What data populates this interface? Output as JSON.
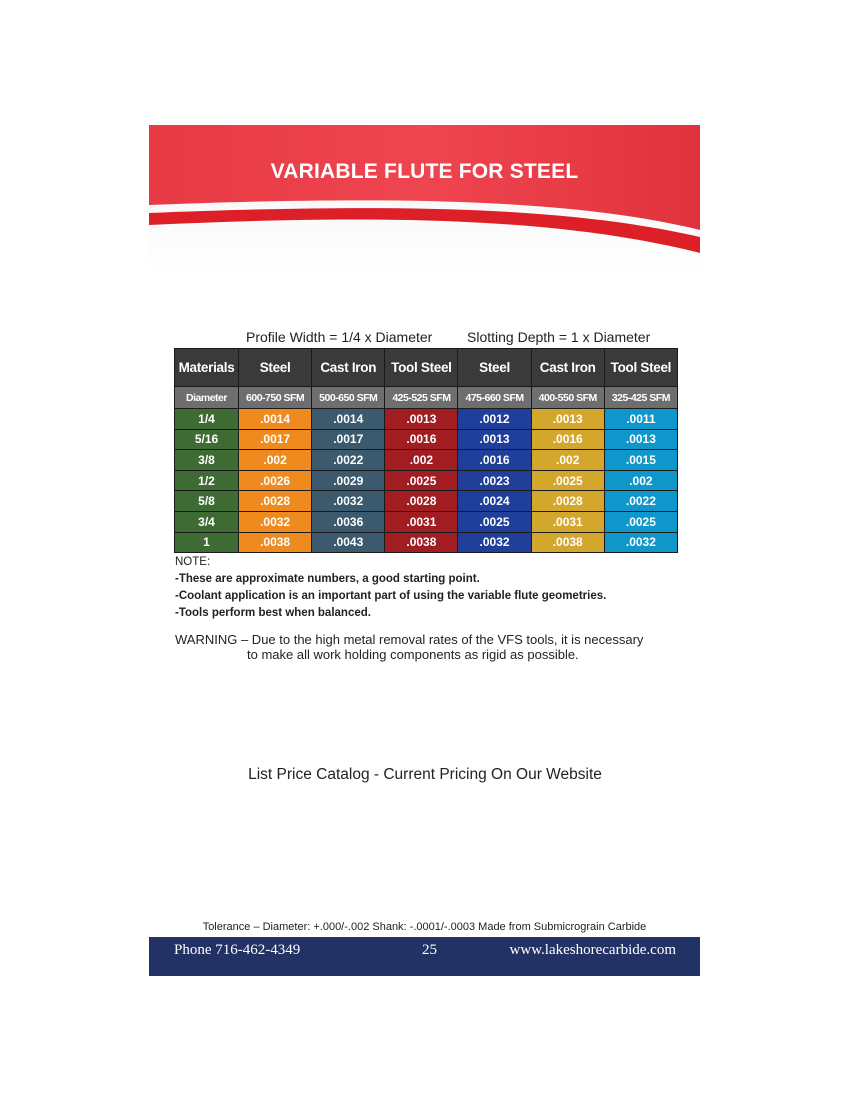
{
  "banner": {
    "title": "VARIABLE FLUTE FOR STEEL"
  },
  "captions": {
    "profile": "Profile Width = 1/4 x Diameter",
    "slotting": "Slotting Depth = 1 x Diameter"
  },
  "table": {
    "headers": [
      "Materials",
      "Steel",
      "Cast Iron",
      "Tool Steel",
      "Steel",
      "Cast Iron",
      "Tool Steel"
    ],
    "subheaders": [
      "Diameter",
      "600-750 SFM",
      "500-650 SFM",
      "425-525 SFM",
      "475-660 SFM",
      "400-550 SFM",
      "325-425 SFM"
    ],
    "column_colors": [
      "#3e6b34",
      "#ef8a1f",
      "#3b5a6e",
      "#a11d22",
      "#1f3f9a",
      "#d3a62c",
      "#0f97cc"
    ],
    "rows": [
      [
        "1/4",
        ".0014",
        ".0014",
        ".0013",
        ".0012",
        ".0013",
        ".0011"
      ],
      [
        "5/16",
        ".0017",
        ".0017",
        ".0016",
        ".0013",
        ".0016",
        ".0013"
      ],
      [
        "3/8",
        ".002",
        ".0022",
        ".002",
        ".0016",
        ".002",
        ".0015"
      ],
      [
        "1/2",
        ".0026",
        ".0029",
        ".0025",
        ".0023",
        ".0025",
        ".002"
      ],
      [
        "5/8",
        ".0028",
        ".0032",
        ".0028",
        ".0024",
        ".0028",
        ".0022"
      ],
      [
        "3/4",
        ".0032",
        ".0036",
        ".0031",
        ".0025",
        ".0031",
        ".0025"
      ],
      [
        "1",
        ".0038",
        ".0043",
        ".0038",
        ".0032",
        ".0038",
        ".0032"
      ]
    ]
  },
  "notes": {
    "label": "NOTE:",
    "items": [
      "-These are approximate numbers, a good starting point.",
      "-Coolant application is an important part of using the variable flute geometries.",
      "-Tools perform best when balanced."
    ]
  },
  "warning": {
    "line1": "WARNING – Due to the high metal removal rates of the VFS tools, it is necessary",
    "line2": "to make all work holding components as rigid as possible."
  },
  "catalog": "List Price Catalog - Current Pricing On Our Website",
  "tolerance": "Tolerance – Diameter: +.000/-.002   Shank: -.0001/-.0003  Made from Submicrograin Carbide",
  "footer": {
    "phone": "Phone 716-462-4349",
    "page": "25",
    "website": "www.lakeshorecarbide.com"
  }
}
